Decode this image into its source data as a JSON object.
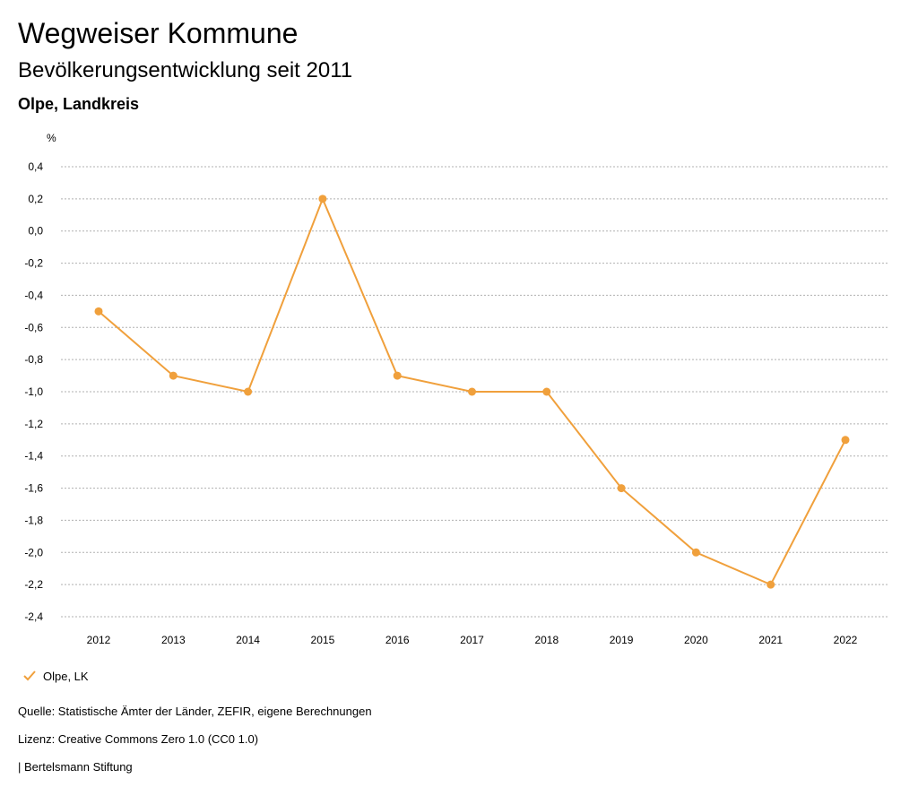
{
  "header": {
    "title": "Wegweiser Kommune",
    "subtitle": "Bevölkerungsentwicklung seit 2011",
    "region": "Olpe, Landkreis"
  },
  "colors": {
    "series": "#f0a03c",
    "grid": "#b0b0b0"
  },
  "legend": {
    "icon": "checkmark-icon",
    "label": "Olpe, LK"
  },
  "footer": {
    "source": "Quelle: Statistische Ämter der Länder, ZEFIR, eigene Berechnungen",
    "license": "Lizenz: Creative Commons Zero 1.0 (CC0 1.0)",
    "publisher": "| Bertelsmann Stiftung"
  },
  "chart_data": {
    "type": "line",
    "title": "Bevölkerungsentwicklung seit 2011",
    "ylabel": "%",
    "xlabel": "",
    "ylim": [
      -2.4,
      0.4
    ],
    "yticks": [
      0.4,
      0.2,
      0.0,
      -0.2,
      -0.4,
      -0.6,
      -0.8,
      -1.0,
      -1.2,
      -1.4,
      -1.6,
      -1.8,
      -2.0,
      -2.2,
      -2.4
    ],
    "ytick_labels": [
      "0,4",
      "0,2",
      "0,0",
      "-0,2",
      "-0,4",
      "-0,6",
      "-0,8",
      "-1,0",
      "-1,2",
      "-1,4",
      "-1,6",
      "-1,8",
      "-2,0",
      "-2,2",
      "-2,4"
    ],
    "categories": [
      "2012",
      "2013",
      "2014",
      "2015",
      "2016",
      "2017",
      "2018",
      "2019",
      "2020",
      "2021",
      "2022"
    ],
    "series": [
      {
        "name": "Olpe, LK",
        "values": [
          -0.5,
          -0.9,
          -1.0,
          0.2,
          -0.9,
          -1.0,
          -1.0,
          -1.6,
          -2.0,
          -2.2,
          -1.3
        ]
      }
    ],
    "grid": true,
    "legend_position": "bottom-left"
  }
}
